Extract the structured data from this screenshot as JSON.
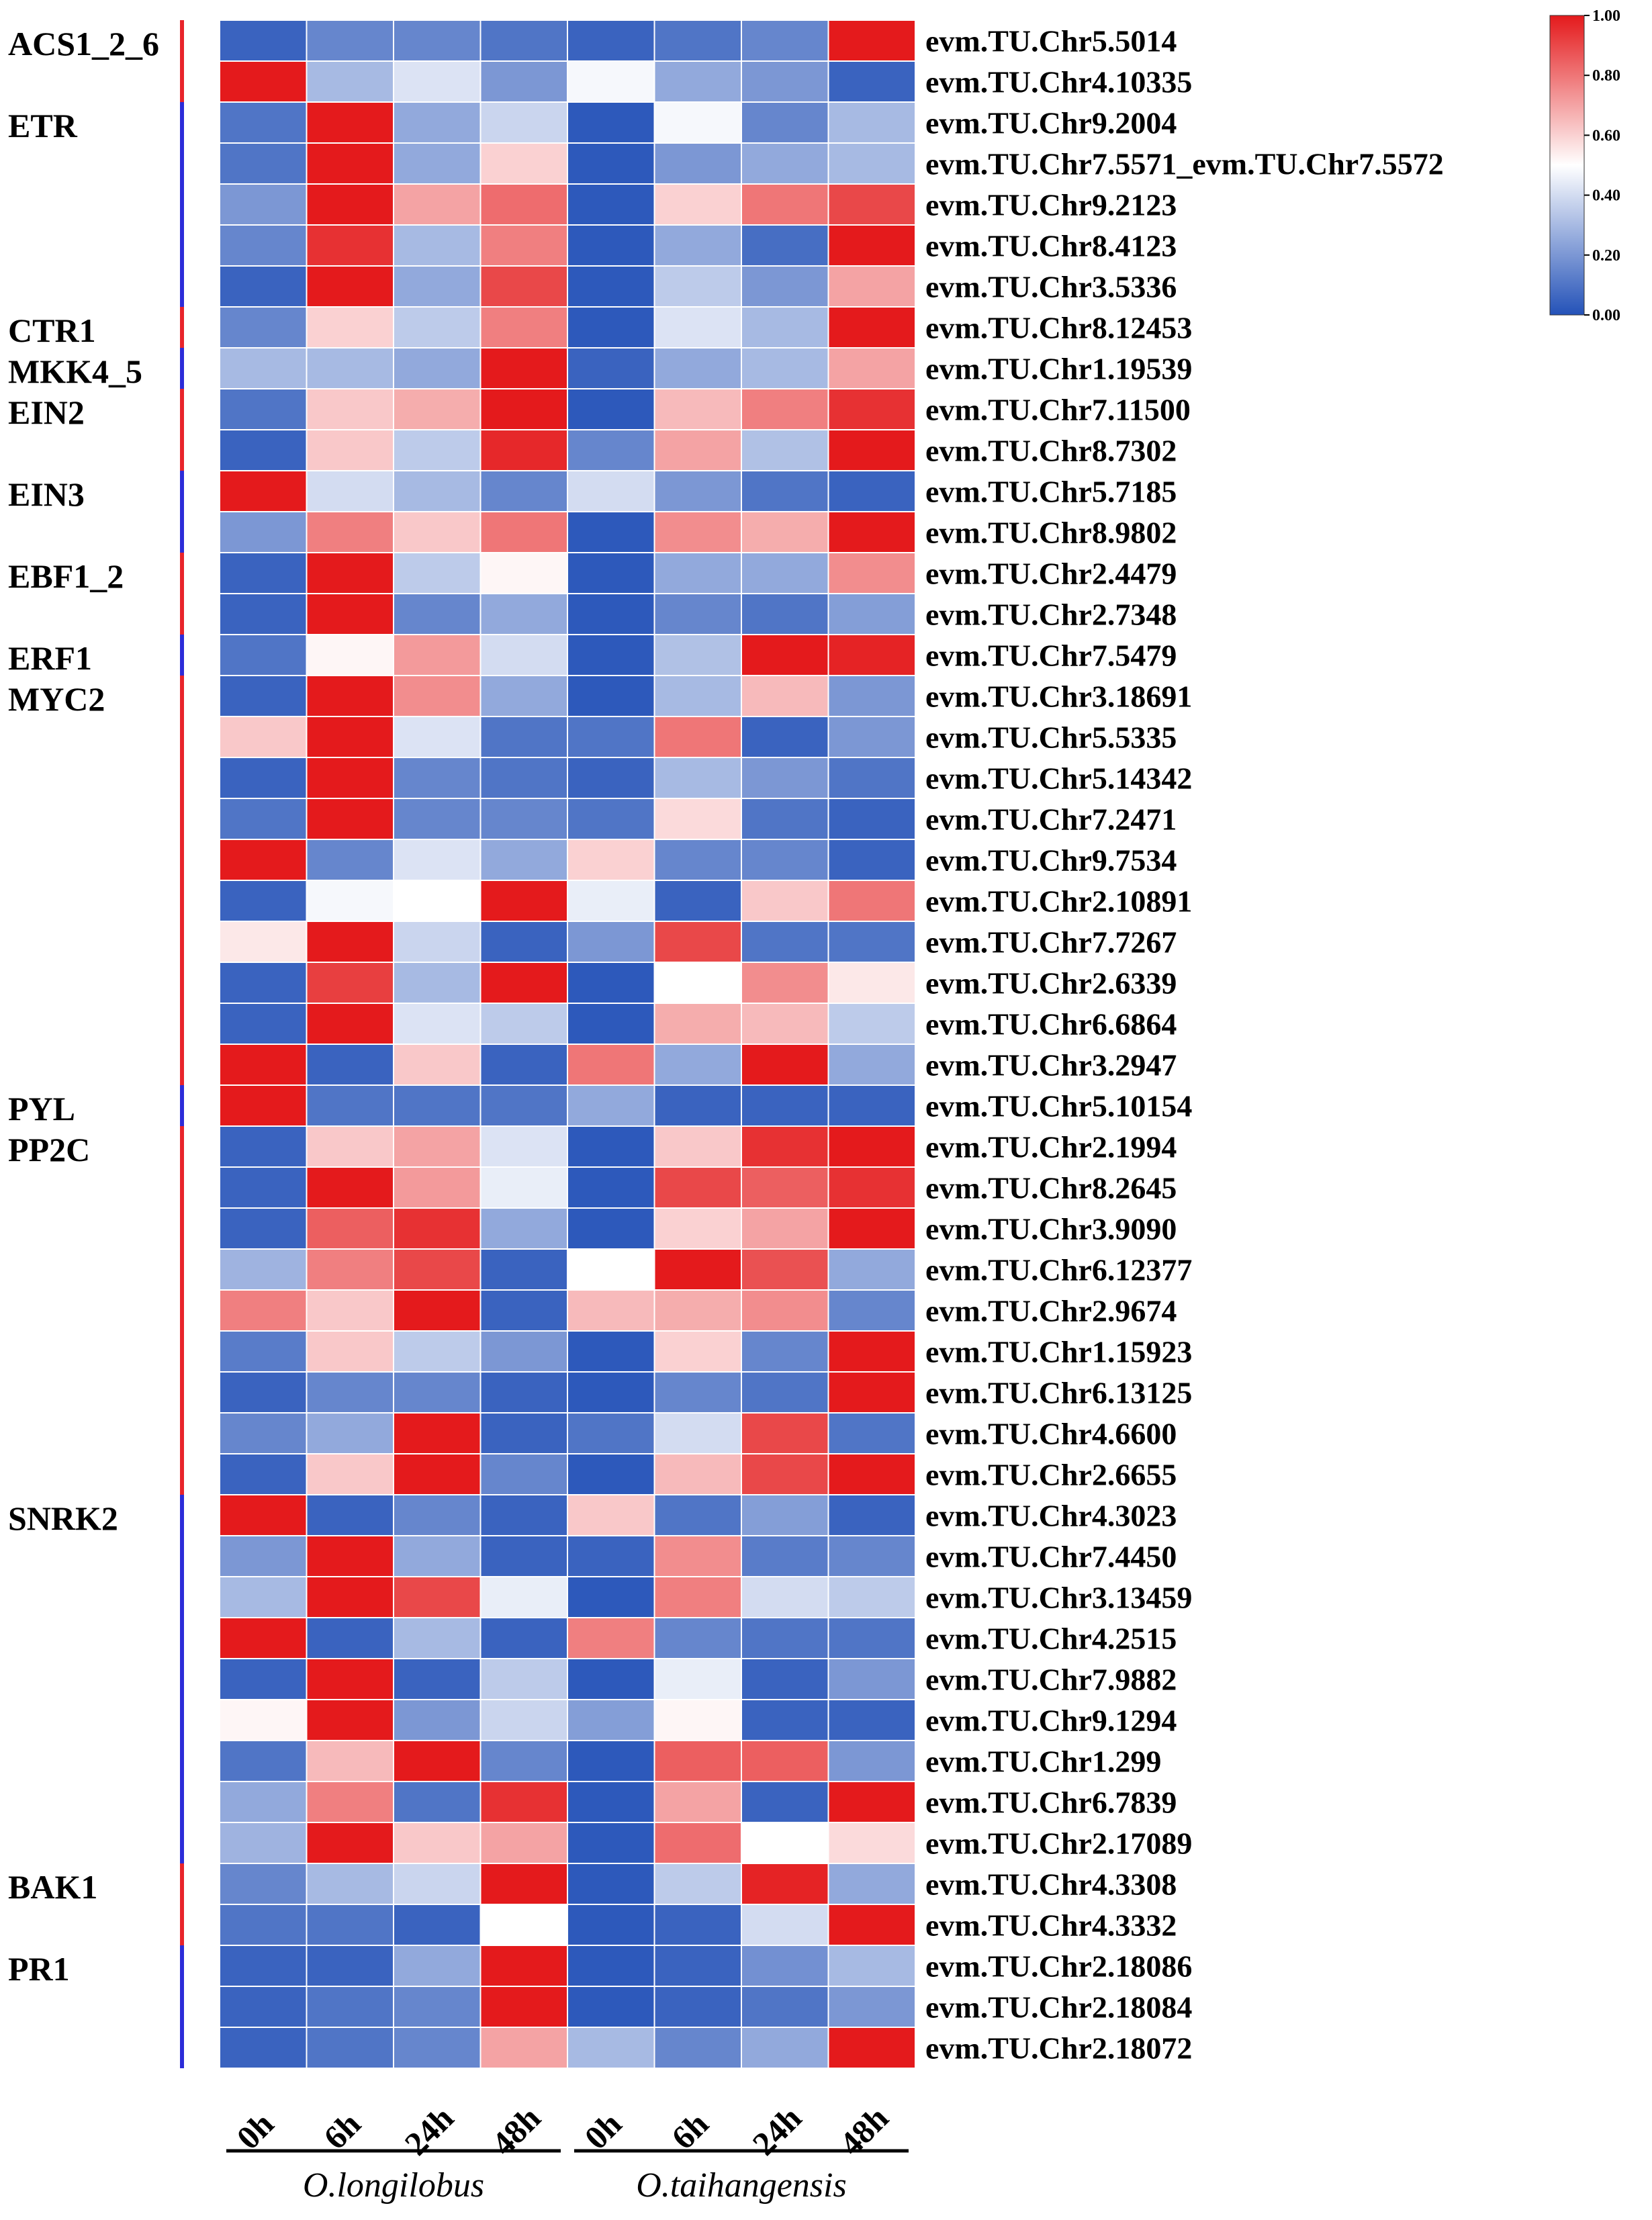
{
  "chart_data": {
    "type": "heatmap",
    "title": "",
    "columns": [
      "0h",
      "6h",
      "24h",
      "48h",
      "0h",
      "6h",
      "24h",
      "48h"
    ],
    "species": [
      "O.longilobus",
      "O.taihangensis"
    ],
    "rows": [
      "evm.TU.Chr5.5014",
      "evm.TU.Chr4.10335",
      "evm.TU.Chr9.2004",
      "evm.TU.Chr7.5571_evm.TU.Chr7.5572",
      "evm.TU.Chr9.2123",
      "evm.TU.Chr8.4123",
      "evm.TU.Chr3.5336",
      "evm.TU.Chr8.12453",
      "evm.TU.Chr1.19539",
      "evm.TU.Chr7.11500",
      "evm.TU.Chr8.7302",
      "evm.TU.Chr5.7185",
      "evm.TU.Chr8.9802",
      "evm.TU.Chr2.4479",
      "evm.TU.Chr2.7348",
      "evm.TU.Chr7.5479",
      "evm.TU.Chr3.18691",
      "evm.TU.Chr5.5335",
      "evm.TU.Chr5.14342",
      "evm.TU.Chr7.2471",
      "evm.TU.Chr9.7534",
      "evm.TU.Chr2.10891",
      "evm.TU.Chr7.7267",
      "evm.TU.Chr2.6339",
      "evm.TU.Chr6.6864",
      "evm.TU.Chr3.2947",
      "evm.TU.Chr5.10154",
      "evm.TU.Chr2.1994",
      "evm.TU.Chr8.2645",
      "evm.TU.Chr3.9090",
      "evm.TU.Chr6.12377",
      "evm.TU.Chr2.9674",
      "evm.TU.Chr1.15923",
      "evm.TU.Chr6.13125",
      "evm.TU.Chr4.6600",
      "evm.TU.Chr2.6655",
      "evm.TU.Chr4.3023",
      "evm.TU.Chr7.4450",
      "evm.TU.Chr3.13459",
      "evm.TU.Chr4.2515",
      "evm.TU.Chr7.9882",
      "evm.TU.Chr9.1294",
      "evm.TU.Chr1.299",
      "evm.TU.Chr6.7839",
      "evm.TU.Chr2.17089",
      "evm.TU.Chr4.3308",
      "evm.TU.Chr4.3332",
      "evm.TU.Chr2.18086",
      "evm.TU.Chr2.18084",
      "evm.TU.Chr2.18072"
    ],
    "values": [
      [
        0.05,
        0.15,
        0.15,
        0.1,
        0.05,
        0.1,
        0.15,
        1.0
      ],
      [
        1.0,
        0.3,
        0.42,
        0.2,
        0.48,
        0.25,
        0.2,
        0.05
      ],
      [
        0.1,
        1.0,
        0.25,
        0.38,
        0.02,
        0.48,
        0.15,
        0.3
      ],
      [
        0.1,
        1.0,
        0.25,
        0.6,
        0.02,
        0.2,
        0.25,
        0.3
      ],
      [
        0.2,
        1.0,
        0.7,
        0.82,
        0.02,
        0.6,
        0.8,
        0.9
      ],
      [
        0.15,
        0.95,
        0.3,
        0.78,
        0.02,
        0.25,
        0.08,
        1.0
      ],
      [
        0.05,
        1.0,
        0.25,
        0.9,
        0.02,
        0.35,
        0.2,
        0.7
      ],
      [
        0.15,
        0.6,
        0.35,
        0.78,
        0.02,
        0.42,
        0.3,
        1.0
      ],
      [
        0.3,
        0.3,
        0.25,
        1.0,
        0.05,
        0.25,
        0.3,
        0.7
      ],
      [
        0.1,
        0.62,
        0.68,
        1.0,
        0.02,
        0.65,
        0.78,
        0.95
      ],
      [
        0.05,
        0.62,
        0.35,
        0.97,
        0.15,
        0.7,
        0.32,
        1.0
      ],
      [
        1.0,
        0.4,
        0.3,
        0.15,
        0.4,
        0.2,
        0.1,
        0.05
      ],
      [
        0.2,
        0.78,
        0.62,
        0.8,
        0.02,
        0.75,
        0.68,
        1.0
      ],
      [
        0.05,
        1.0,
        0.35,
        0.52,
        0.02,
        0.25,
        0.25,
        0.75
      ],
      [
        0.05,
        1.0,
        0.15,
        0.25,
        0.02,
        0.15,
        0.1,
        0.22
      ],
      [
        0.1,
        0.52,
        0.72,
        0.4,
        0.02,
        0.32,
        1.0,
        0.98
      ],
      [
        0.05,
        1.0,
        0.75,
        0.25,
        0.02,
        0.3,
        0.65,
        0.2
      ],
      [
        0.62,
        1.0,
        0.42,
        0.1,
        0.1,
        0.8,
        0.05,
        0.2
      ],
      [
        0.05,
        1.0,
        0.15,
        0.1,
        0.05,
        0.3,
        0.2,
        0.1
      ],
      [
        0.1,
        1.0,
        0.15,
        0.15,
        0.1,
        0.58,
        0.1,
        0.05
      ],
      [
        1.0,
        0.15,
        0.42,
        0.25,
        0.6,
        0.15,
        0.15,
        0.05
      ],
      [
        0.05,
        0.48,
        0.5,
        1.0,
        0.45,
        0.05,
        0.62,
        0.8
      ],
      [
        0.55,
        1.0,
        0.38,
        0.05,
        0.2,
        0.9,
        0.1,
        0.1
      ],
      [
        0.05,
        0.92,
        0.3,
        1.0,
        0.02,
        0.5,
        0.75,
        0.55
      ],
      [
        0.05,
        1.0,
        0.42,
        0.35,
        0.02,
        0.68,
        0.65,
        0.35
      ],
      [
        1.0,
        0.05,
        0.62,
        0.05,
        0.8,
        0.25,
        1.0,
        0.25
      ],
      [
        1.0,
        0.1,
        0.1,
        0.1,
        0.25,
        0.05,
        0.05,
        0.05
      ],
      [
        0.05,
        0.62,
        0.7,
        0.42,
        0.02,
        0.62,
        0.95,
        1.0
      ],
      [
        0.05,
        1.0,
        0.72,
        0.45,
        0.02,
        0.9,
        0.85,
        0.95
      ],
      [
        0.05,
        0.85,
        0.95,
        0.25,
        0.02,
        0.6,
        0.7,
        1.0
      ],
      [
        0.28,
        0.78,
        0.9,
        0.05,
        0.5,
        1.0,
        0.88,
        0.25
      ],
      [
        0.78,
        0.62,
        1.0,
        0.05,
        0.65,
        0.68,
        0.75,
        0.15
      ],
      [
        0.12,
        0.62,
        0.35,
        0.2,
        0.02,
        0.6,
        0.15,
        1.0
      ],
      [
        0.05,
        0.15,
        0.15,
        0.05,
        0.02,
        0.15,
        0.1,
        1.0
      ],
      [
        0.15,
        0.25,
        1.0,
        0.05,
        0.1,
        0.4,
        0.9,
        0.1
      ],
      [
        0.05,
        0.62,
        1.0,
        0.15,
        0.02,
        0.65,
        0.9,
        1.0
      ],
      [
        1.0,
        0.05,
        0.15,
        0.05,
        0.62,
        0.1,
        0.22,
        0.05
      ],
      [
        0.2,
        1.0,
        0.25,
        0.05,
        0.05,
        0.75,
        0.12,
        0.15
      ],
      [
        0.3,
        1.0,
        0.9,
        0.45,
        0.02,
        0.78,
        0.4,
        0.35
      ],
      [
        1.0,
        0.05,
        0.3,
        0.05,
        0.78,
        0.15,
        0.1,
        0.1
      ],
      [
        0.05,
        1.0,
        0.05,
        0.35,
        0.02,
        0.45,
        0.05,
        0.2
      ],
      [
        0.52,
        1.0,
        0.2,
        0.38,
        0.22,
        0.52,
        0.05,
        0.05
      ],
      [
        0.1,
        0.65,
        1.0,
        0.15,
        0.02,
        0.85,
        0.85,
        0.2
      ],
      [
        0.25,
        0.78,
        0.1,
        0.95,
        0.02,
        0.7,
        0.05,
        1.0
      ],
      [
        0.28,
        1.0,
        0.62,
        0.7,
        0.02,
        0.82,
        0.5,
        0.58
      ],
      [
        0.15,
        0.3,
        0.38,
        1.0,
        0.02,
        0.35,
        0.98,
        0.25
      ],
      [
        0.1,
        0.1,
        0.05,
        0.5,
        0.02,
        0.05,
        0.4,
        1.0
      ],
      [
        0.05,
        0.05,
        0.25,
        1.0,
        0.02,
        0.05,
        0.18,
        0.3
      ],
      [
        0.05,
        0.1,
        0.15,
        1.0,
        0.02,
        0.05,
        0.1,
        0.2
      ],
      [
        0.05,
        0.1,
        0.15,
        0.7,
        0.3,
        0.15,
        0.25,
        1.0
      ]
    ],
    "groups": [
      {
        "label": "ACS1_2_6",
        "start": 0,
        "end": 1,
        "color": "#e8242b"
      },
      {
        "label": "ETR",
        "start": 2,
        "end": 6,
        "color": "#2c2cd8"
      },
      {
        "label": "CTR1",
        "start": 7,
        "end": 7,
        "color": "#e8242b"
      },
      {
        "label": "MKK4_5",
        "start": 8,
        "end": 8,
        "color": "#2c2cd8"
      },
      {
        "label": "EIN2",
        "start": 9,
        "end": 10,
        "color": "#e8242b"
      },
      {
        "label": "EIN3",
        "start": 11,
        "end": 12,
        "color": "#2c2cd8"
      },
      {
        "label": "EBF1_2",
        "start": 13,
        "end": 14,
        "color": "#e8242b"
      },
      {
        "label": "ERF1",
        "start": 15,
        "end": 15,
        "color": "#2c2cd8"
      },
      {
        "label": "MYC2",
        "start": 16,
        "end": 25,
        "color": "#e8242b"
      },
      {
        "label": "PYL",
        "start": 26,
        "end": 26,
        "color": "#2c2cd8"
      },
      {
        "label": "PP2C",
        "start": 27,
        "end": 35,
        "color": "#e8242b"
      },
      {
        "label": "SNRK2",
        "start": 36,
        "end": 44,
        "color": "#2c2cd8"
      },
      {
        "label": "BAK1",
        "start": 45,
        "end": 46,
        "color": "#e8242b"
      },
      {
        "label": "PR1",
        "start": 47,
        "end": 49,
        "color": "#2c2cd8"
      }
    ],
    "colorbar": {
      "range": [
        0,
        1
      ],
      "ticks": [
        "0.00",
        "0.20",
        "0.40",
        "0.60",
        "0.80",
        "1.00"
      ],
      "colors": [
        "#2452b8",
        "#ffffff",
        "#e41a1c"
      ]
    }
  }
}
